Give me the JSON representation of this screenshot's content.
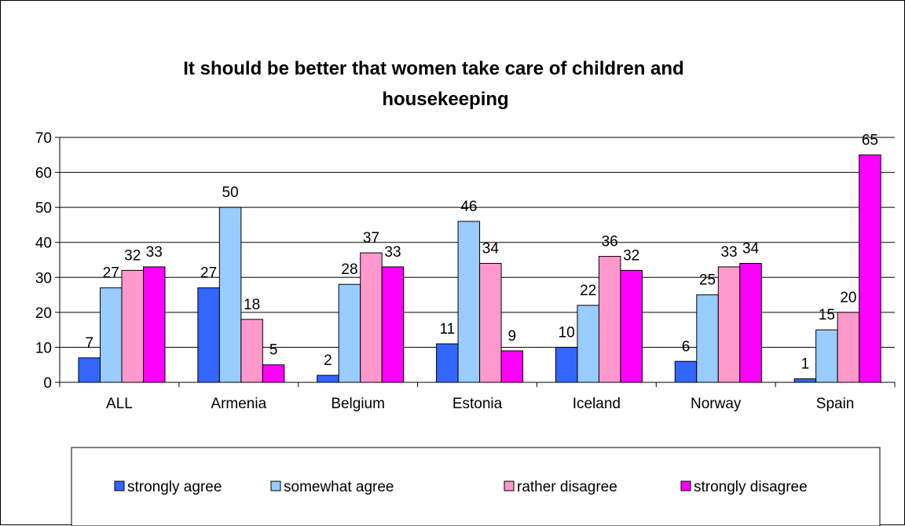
{
  "chart_data": {
    "type": "bar",
    "title_lines": [
      "It should be better that women take care of children and",
      "housekeeping"
    ],
    "categories": [
      "ALL",
      "Armenia",
      "Belgium",
      "Estonia",
      "Iceland",
      "Norway",
      "Spain"
    ],
    "series": [
      {
        "name": "strongly agree",
        "color": "#3366FF",
        "values": [
          7,
          27,
          2,
          11,
          10,
          6,
          1
        ]
      },
      {
        "name": "somewhat agree",
        "color": "#99CCFF",
        "values": [
          27,
          50,
          28,
          46,
          22,
          25,
          15
        ]
      },
      {
        "name": "rather disagree",
        "color": "#FF99CC",
        "values": [
          32,
          18,
          37,
          34,
          36,
          33,
          20
        ]
      },
      {
        "name": "strongly disagree",
        "color": "#FF00FF",
        "values": [
          33,
          5,
          33,
          9,
          32,
          34,
          65
        ]
      }
    ],
    "ylim": [
      0,
      70
    ],
    "yticks": [
      0,
      10,
      20,
      30,
      40,
      50,
      60,
      70
    ],
    "grid": true,
    "legend_position": "bottom",
    "data_labels": true
  }
}
